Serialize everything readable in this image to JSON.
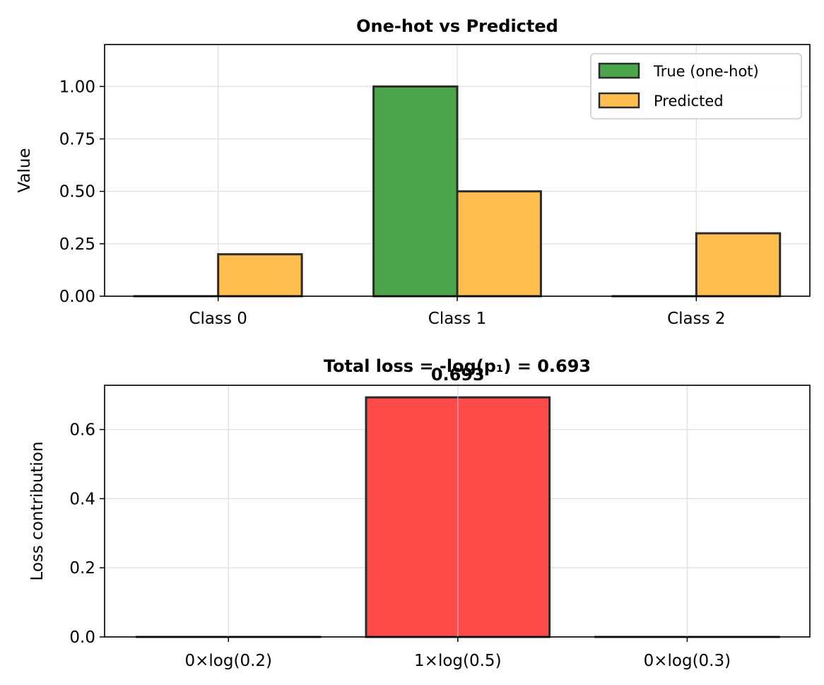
{
  "chart_data": [
    {
      "type": "bar",
      "title": "One-hot vs Predicted",
      "xlabel": "",
      "ylabel": "Value",
      "categories": [
        "Class 0",
        "Class 1",
        "Class 2"
      ],
      "series": [
        {
          "name": "True (one-hot)",
          "values": [
            0,
            1,
            0
          ],
          "color": "#4ba54b"
        },
        {
          "name": "Predicted",
          "values": [
            0.2,
            0.5,
            0.3
          ],
          "color": "#ffbe4d"
        }
      ],
      "ylim": [
        0,
        1.2
      ],
      "yticks": [
        "0.00",
        "0.25",
        "0.50",
        "0.75",
        "1.00"
      ],
      "grid": true,
      "legend": "top-right"
    },
    {
      "type": "bar",
      "title": "Total loss = -log(p₁) = 0.693",
      "xlabel": "",
      "ylabel": "Loss contribution",
      "categories": [
        "0×log(0.2)",
        "1×log(0.5)",
        "0×log(0.3)"
      ],
      "values": [
        0,
        0.693,
        0
      ],
      "data_labels": [
        "",
        "0.693",
        ""
      ],
      "color": "#ff4a4a",
      "ylim": [
        0,
        0.728
      ],
      "yticks": [
        "0.0",
        "0.2",
        "0.4",
        "0.6"
      ],
      "grid": true
    }
  ]
}
